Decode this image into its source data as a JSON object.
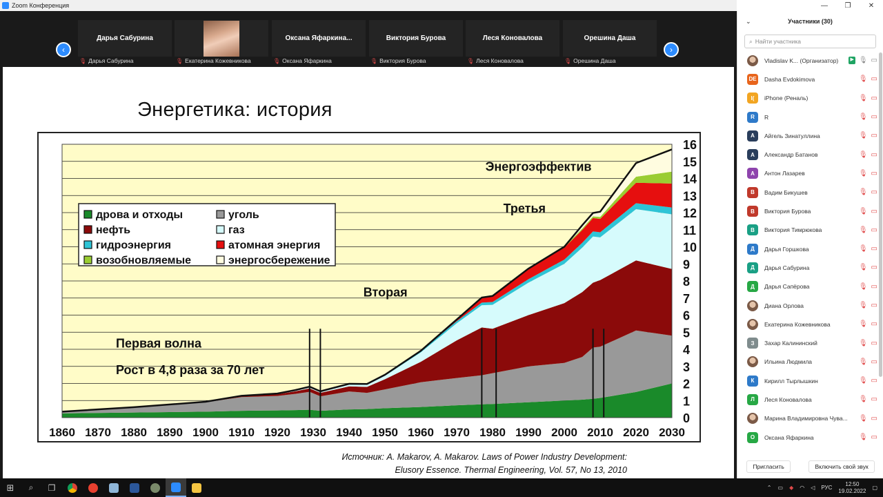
{
  "window": {
    "title": "Zoom Конференция",
    "controls": [
      "—",
      "❐",
      "✕"
    ]
  },
  "video_strip": {
    "prev_arrow": "‹",
    "next_arrow": "›",
    "tiles": [
      {
        "label": "Дарья Сабурина",
        "caption": "Дарья Сабурина"
      },
      {
        "label": "",
        "caption": "Екатерина Кожевникова",
        "photo": true
      },
      {
        "label": "Оксана  Яфаркина...",
        "caption": "Оксана Яфаркина"
      },
      {
        "label": "Виктория Бурова",
        "caption": "Виктория Бурова"
      },
      {
        "label": "Леся Коновалова",
        "caption": "Леся Коновалова"
      },
      {
        "label": "Орешина Даша",
        "caption": "Орешина Даша"
      }
    ]
  },
  "slide": {
    "title": "Энергетика: история",
    "source_line1": "Источник: A. Makarov, A. Makarov. Laws of Power Industry Development:",
    "source_line2": "Elusory Essence. Thermal Engineering, Vol. 57, No 13, 2010"
  },
  "chart_data": {
    "type": "area",
    "stacked": true,
    "xlim": [
      1860,
      2030
    ],
    "ylim": [
      0,
      16
    ],
    "x_ticks": [
      1860,
      1870,
      1880,
      1890,
      1900,
      1910,
      1920,
      1930,
      1940,
      1950,
      1960,
      1970,
      1980,
      1990,
      2000,
      2010,
      2020,
      2030
    ],
    "y_ticks": [
      0,
      1,
      2,
      3,
      4,
      5,
      6,
      7,
      8,
      9,
      10,
      11,
      12,
      13,
      14,
      15,
      16
    ],
    "grid": "horizontal",
    "legend_placement": "upper-left",
    "x": [
      1860,
      1880,
      1900,
      1910,
      1920,
      1925,
      1929,
      1932,
      1940,
      1945,
      1950,
      1960,
      1970,
      1977,
      1980,
      1990,
      2000,
      2005,
      2008,
      2010,
      2020,
      2030
    ],
    "series": [
      {
        "name": "дрова и отходы",
        "color": "#1a8a2a",
        "values": [
          0.25,
          0.3,
          0.35,
          0.4,
          0.42,
          0.44,
          0.46,
          0.4,
          0.48,
          0.5,
          0.55,
          0.62,
          0.72,
          0.78,
          0.8,
          0.9,
          1.0,
          1.05,
          1.1,
          1.15,
          1.5,
          2.0
        ]
      },
      {
        "name": "уголь",
        "color": "#999999",
        "values": [
          0.1,
          0.3,
          0.55,
          0.8,
          0.85,
          0.95,
          1.05,
          0.85,
          1.05,
          0.95,
          1.1,
          1.45,
          1.6,
          1.7,
          1.8,
          2.1,
          2.2,
          2.5,
          3.0,
          3.0,
          3.6,
          2.8
        ]
      },
      {
        "name": "нефть",
        "color": "#8b0a0a",
        "values": [
          0,
          0.01,
          0.03,
          0.06,
          0.1,
          0.15,
          0.2,
          0.2,
          0.3,
          0.35,
          0.6,
          1.2,
          2.2,
          2.8,
          2.6,
          3.0,
          3.5,
          3.8,
          3.8,
          3.9,
          4.1,
          3.9
        ]
      },
      {
        "name": "газ",
        "color": "#d6fbfc",
        "values": [
          0,
          0,
          0,
          0.01,
          0.02,
          0.04,
          0.06,
          0.05,
          0.1,
          0.12,
          0.2,
          0.55,
          1.0,
          1.3,
          1.4,
          1.9,
          2.3,
          2.6,
          2.7,
          2.5,
          3.0,
          3.2
        ]
      },
      {
        "name": "гидроэнергия",
        "color": "#2ec4d6",
        "values": [
          0,
          0,
          0,
          0.01,
          0.02,
          0.03,
          0.04,
          0.04,
          0.05,
          0.05,
          0.06,
          0.08,
          0.12,
          0.15,
          0.17,
          0.2,
          0.25,
          0.28,
          0.3,
          0.3,
          0.35,
          0.4
        ]
      },
      {
        "name": "атомная энергия",
        "color": "#e60f0f",
        "values": [
          0,
          0,
          0,
          0,
          0,
          0,
          0,
          0,
          0,
          0,
          0,
          0.01,
          0.1,
          0.3,
          0.35,
          0.6,
          0.7,
          0.75,
          0.78,
          0.78,
          1.2,
          1.4
        ]
      },
      {
        "name": "возобновляемые",
        "color": "#9acd32",
        "values": [
          0,
          0,
          0,
          0,
          0,
          0,
          0,
          0,
          0,
          0,
          0,
          0,
          0,
          0,
          0,
          0.02,
          0.05,
          0.08,
          0.1,
          0.12,
          0.35,
          0.7
        ]
      },
      {
        "name": "энергосбережение",
        "color": "#fffce0",
        "values": [
          0,
          0,
          0,
          0,
          0,
          0,
          0,
          0,
          0,
          0,
          0,
          0,
          0,
          0,
          0,
          0,
          0,
          0.2,
          0.2,
          0.3,
          0.8,
          1.3
        ]
      }
    ],
    "vlines": [
      1929,
      1932,
      1977,
      1981,
      2008,
      2011
    ],
    "annotations": [
      {
        "text": "Первая волна",
        "x": 1875,
        "y": 4.1
      },
      {
        "text": "Рост в 4,8 раза за 70 лет",
        "x": 1875,
        "y": 2.55
      },
      {
        "text": "Вторая",
        "x": 1944,
        "y": 7.1
      },
      {
        "text": "Третья",
        "x": 1983,
        "y": 12.0
      },
      {
        "text": "Энергоэффектив",
        "x": 1978,
        "y": 14.45
      }
    ]
  },
  "participants_panel": {
    "title": "Участники (30)",
    "search_placeholder": "Найти участника",
    "participants": [
      {
        "name": "Vladislav K...  (Организатор)",
        "initial": "",
        "color": "#c9a77c",
        "photo": true,
        "host": true
      },
      {
        "name": "Dasha Evdokimova",
        "initial": "DE",
        "color": "#e8651c"
      },
      {
        "name": "iPhone (Реналь)",
        "initial": "I(",
        "color": "#f2a522"
      },
      {
        "name": "R",
        "initial": "R",
        "color": "#2e7ac9"
      },
      {
        "name": "Айгель Зинатуллина",
        "initial": "А",
        "color": "#2a3e5c"
      },
      {
        "name": "Александр Батанов",
        "initial": "А",
        "color": "#2a3e5c"
      },
      {
        "name": "Антон Лазарев",
        "initial": "А",
        "color": "#8e44ad"
      },
      {
        "name": "Вадим Бикушев",
        "initial": "В",
        "color": "#c0392b"
      },
      {
        "name": "Виктория Бурова",
        "initial": "В",
        "color": "#c0392b"
      },
      {
        "name": "Виктория Тимрюкова",
        "initial": "В",
        "color": "#1aa085"
      },
      {
        "name": "Дарья Горшкова",
        "initial": "Д",
        "color": "#2e7ac9"
      },
      {
        "name": "Дарья Сабурина",
        "initial": "Д",
        "color": "#1aa085"
      },
      {
        "name": "Дарья Сапёрова",
        "initial": "Д",
        "color": "#27a845"
      },
      {
        "name": "Диана Орлова",
        "initial": "",
        "color": "#a0804a",
        "photo": true
      },
      {
        "name": "Екатерина Кожевникова",
        "initial": "",
        "color": "#c48a7a",
        "photo": true
      },
      {
        "name": "Захар Калининский",
        "initial": "З",
        "color": "#7f8c8d"
      },
      {
        "name": "Ильина Людмила",
        "initial": "",
        "color": "#8a7a70",
        "photo": true
      },
      {
        "name": "Кирилл Тырлышкин",
        "initial": "К",
        "color": "#2e7ac9"
      },
      {
        "name": "Леся Коновалова",
        "initial": "Л",
        "color": "#27a845"
      },
      {
        "name": "Марина Владимировна Чува...",
        "initial": "",
        "color": "#9a3b2a",
        "photo": true
      },
      {
        "name": "Оксана Яфаркина",
        "initial": "О",
        "color": "#27a845"
      }
    ],
    "invite_button": "Пригласить",
    "unmute_button": "Включить свой звук"
  },
  "taskbar": {
    "language": "РУС",
    "time": "12:50",
    "date": "19.02.2022"
  }
}
